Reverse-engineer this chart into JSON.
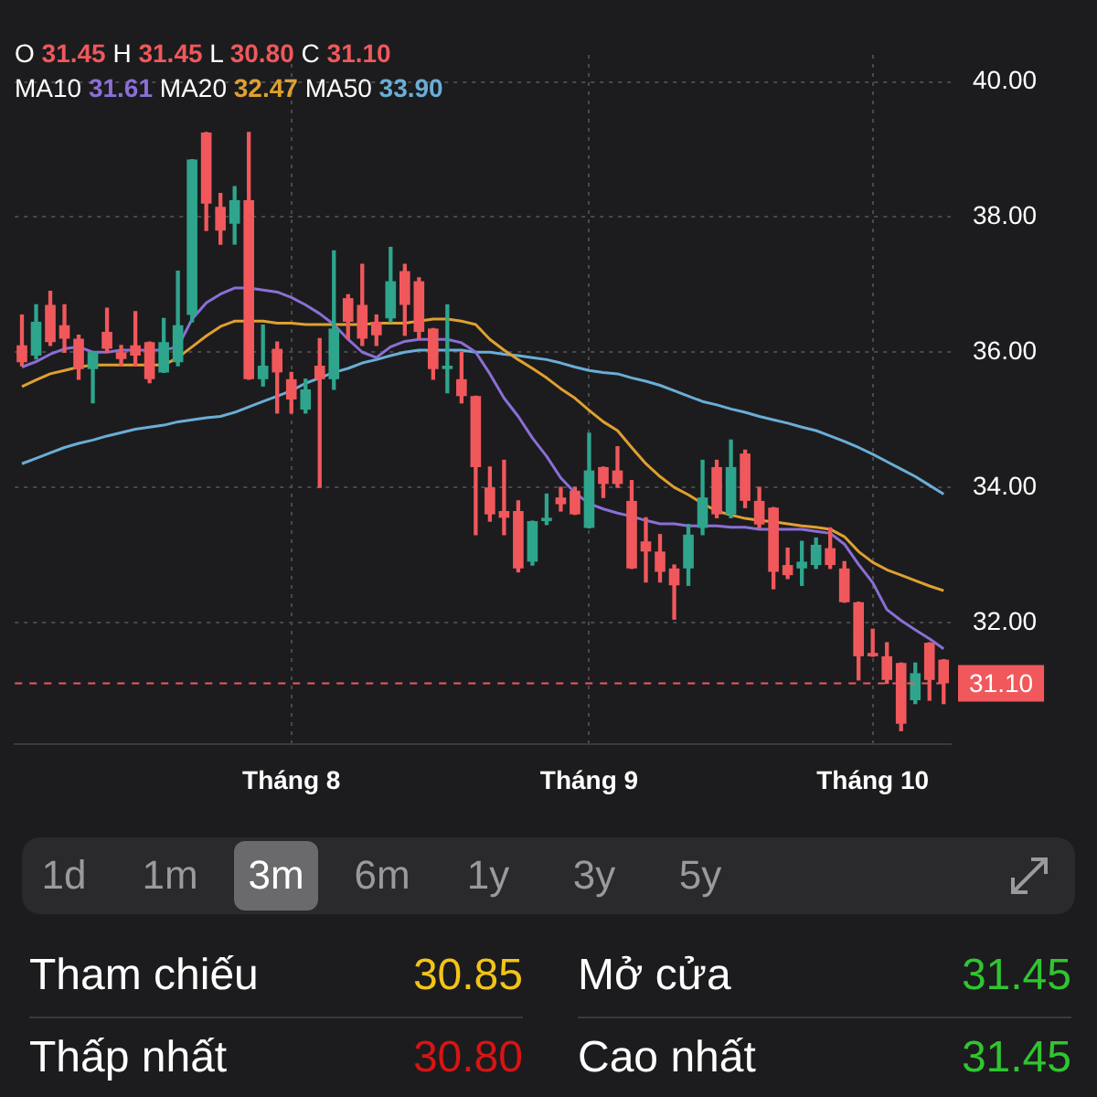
{
  "chart_data": {
    "type": "candlestick",
    "categories": [
      null,
      null,
      null,
      null,
      null,
      null,
      null,
      null,
      null,
      null,
      null,
      null,
      null,
      null,
      null,
      null,
      null,
      null,
      null,
      "Tháng 8",
      null,
      null,
      null,
      null,
      null,
      null,
      null,
      null,
      null,
      null,
      null,
      null,
      null,
      null,
      null,
      null,
      null,
      null,
      null,
      null,
      "Tháng 9",
      null,
      null,
      null,
      null,
      null,
      null,
      null,
      null,
      null,
      null,
      null,
      null,
      null,
      null,
      null,
      null,
      null,
      null,
      null,
      "Tháng 10",
      null,
      null,
      null,
      null,
      null
    ],
    "ohlc": [
      [
        36.1,
        36.55,
        35.8,
        35.85
      ],
      [
        35.95,
        36.7,
        35.9,
        36.45
      ],
      [
        36.7,
        36.9,
        36.1,
        36.15
      ],
      [
        36.4,
        36.7,
        36.0,
        36.2
      ],
      [
        36.2,
        36.25,
        35.6,
        35.75
      ],
      [
        35.75,
        36.0,
        35.25,
        36.0
      ],
      [
        36.3,
        36.65,
        36.0,
        36.05
      ],
      [
        36.0,
        36.1,
        35.8,
        35.9
      ],
      [
        36.1,
        36.6,
        35.8,
        35.95
      ],
      [
        36.15,
        36.15,
        35.55,
        35.6
      ],
      [
        35.7,
        36.5,
        35.7,
        36.15
      ],
      [
        35.85,
        37.2,
        35.8,
        36.4
      ],
      [
        36.55,
        38.85,
        36.45,
        38.85
      ],
      [
        39.25,
        39.25,
        37.8,
        38.2
      ],
      [
        38.15,
        38.35,
        37.6,
        37.8
      ],
      [
        37.9,
        38.45,
        37.6,
        38.25
      ],
      [
        38.25,
        39.25,
        35.6,
        35.6
      ],
      [
        35.6,
        36.4,
        35.5,
        35.8
      ],
      [
        36.05,
        36.15,
        35.1,
        35.7
      ],
      [
        35.6,
        35.7,
        35.1,
        35.3
      ],
      [
        35.15,
        35.6,
        35.1,
        35.45
      ],
      [
        35.8,
        36.2,
        34.0,
        35.6
      ],
      [
        35.6,
        37.5,
        35.45,
        36.35
      ],
      [
        36.8,
        36.85,
        36.2,
        36.45
      ],
      [
        36.7,
        37.3,
        36.1,
        36.2
      ],
      [
        36.45,
        36.55,
        36.1,
        36.25
      ],
      [
        36.5,
        37.55,
        36.45,
        37.05
      ],
      [
        37.2,
        37.3,
        36.25,
        36.7
      ],
      [
        37.05,
        37.1,
        36.2,
        36.3
      ],
      [
        36.35,
        36.35,
        35.6,
        35.75
      ],
      [
        35.75,
        36.7,
        35.4,
        35.8
      ],
      [
        35.6,
        36.0,
        35.25,
        35.35
      ],
      [
        35.35,
        35.35,
        33.3,
        34.3
      ],
      [
        34.0,
        34.3,
        33.5,
        33.6
      ],
      [
        33.65,
        34.4,
        33.3,
        33.55
      ],
      [
        33.65,
        33.8,
        32.75,
        32.8
      ],
      [
        32.9,
        33.5,
        32.85,
        33.5
      ],
      [
        33.5,
        33.9,
        33.45,
        33.55
      ],
      [
        33.85,
        34.0,
        33.65,
        33.75
      ],
      [
        33.95,
        34.0,
        33.6,
        33.6
      ],
      [
        33.4,
        34.8,
        33.4,
        34.25
      ],
      [
        34.3,
        34.3,
        33.85,
        34.05
      ],
      [
        34.25,
        34.6,
        34.0,
        34.05
      ],
      [
        33.8,
        34.1,
        32.8,
        32.8
      ],
      [
        33.2,
        33.55,
        32.6,
        33.05
      ],
      [
        33.05,
        33.3,
        32.6,
        32.75
      ],
      [
        32.8,
        32.85,
        32.05,
        32.55
      ],
      [
        32.8,
        33.45,
        32.55,
        33.3
      ],
      [
        33.4,
        34.4,
        33.3,
        33.85
      ],
      [
        34.3,
        34.4,
        33.55,
        33.6
      ],
      [
        33.6,
        34.7,
        33.55,
        34.3
      ],
      [
        34.5,
        34.55,
        33.7,
        33.8
      ],
      [
        33.8,
        34.0,
        33.4,
        33.45
      ],
      [
        33.7,
        33.7,
        32.5,
        32.75
      ],
      [
        32.85,
        33.1,
        32.65,
        32.7
      ],
      [
        32.8,
        33.2,
        32.55,
        32.9
      ],
      [
        32.85,
        33.25,
        32.8,
        33.15
      ],
      [
        33.1,
        33.4,
        32.8,
        32.85
      ],
      [
        32.8,
        32.9,
        32.3,
        32.3
      ],
      [
        32.3,
        32.3,
        31.15,
        31.5
      ],
      [
        31.55,
        31.9,
        31.5,
        31.5
      ],
      [
        31.5,
        31.7,
        31.1,
        31.15
      ],
      [
        31.4,
        31.4,
        30.4,
        30.5
      ],
      [
        30.85,
        31.4,
        30.8,
        31.25
      ],
      [
        31.7,
        31.7,
        30.85,
        31.15
      ],
      [
        31.45,
        31.45,
        30.8,
        31.1
      ]
    ],
    "series": [
      {
        "type": "line",
        "color": "#8a6fd6",
        "values": [
          35.78,
          35.86,
          35.97,
          36.05,
          36.08,
          36.0,
          36.0,
          36.03,
          36.03,
          36.03,
          36.03,
          36.08,
          36.49,
          36.73,
          36.86,
          36.95,
          36.95,
          36.92,
          36.89,
          36.81,
          36.7,
          36.57,
          36.41,
          36.19,
          36.0,
          35.92,
          36.08,
          36.16,
          36.19,
          36.19,
          36.19,
          36.14,
          36.0,
          35.68,
          35.32,
          35.05,
          34.73,
          34.46,
          34.14,
          33.92,
          33.76,
          33.68,
          33.62,
          33.57,
          33.51,
          33.46,
          33.46,
          33.43,
          33.43,
          33.43,
          33.41,
          33.41,
          33.38,
          33.38,
          33.38,
          33.38,
          33.35,
          33.32,
          33.16,
          32.86,
          32.59,
          32.19,
          32.03,
          31.89,
          31.76,
          31.61
        ]
      },
      {
        "type": "line",
        "color": "#e0a030",
        "values": [
          35.49,
          35.59,
          35.68,
          35.73,
          35.78,
          35.81,
          35.81,
          35.81,
          35.81,
          35.81,
          35.81,
          35.92,
          36.08,
          36.24,
          36.38,
          36.46,
          36.46,
          36.46,
          36.43,
          36.43,
          36.41,
          36.41,
          36.41,
          36.41,
          36.41,
          36.43,
          36.43,
          36.43,
          36.46,
          36.49,
          36.49,
          36.46,
          36.41,
          36.19,
          36.03,
          35.89,
          35.76,
          35.62,
          35.46,
          35.32,
          35.14,
          34.97,
          34.84,
          34.59,
          34.35,
          34.16,
          34.0,
          33.89,
          33.76,
          33.65,
          33.59,
          33.54,
          33.51,
          33.49,
          33.46,
          33.43,
          33.41,
          33.38,
          33.27,
          33.05,
          32.89,
          32.78,
          32.7,
          32.62,
          32.54,
          32.47
        ]
      },
      {
        "type": "line",
        "color": "#6aaed6",
        "values": [
          34.35,
          34.43,
          34.51,
          34.59,
          34.65,
          34.7,
          34.76,
          34.81,
          34.86,
          34.89,
          34.92,
          34.97,
          35.0,
          35.03,
          35.05,
          35.11,
          35.19,
          35.27,
          35.35,
          35.43,
          35.54,
          35.62,
          35.7,
          35.76,
          35.84,
          35.89,
          35.95,
          36.0,
          36.03,
          36.03,
          36.03,
          36.03,
          36.0,
          36.0,
          35.97,
          35.95,
          35.92,
          35.89,
          35.84,
          35.78,
          35.73,
          35.7,
          35.68,
          35.62,
          35.57,
          35.51,
          35.43,
          35.35,
          35.27,
          35.22,
          35.16,
          35.11,
          35.05,
          35.0,
          34.95,
          34.89,
          34.84,
          34.76,
          34.68,
          34.59,
          34.49,
          34.38,
          34.27,
          34.16,
          34.03,
          33.9
        ]
      }
    ],
    "ylim": [
      30.2,
      40.4
    ],
    "yticks": [
      {
        "value": 32,
        "label": "32.00"
      },
      {
        "value": 34,
        "label": "34.00"
      },
      {
        "value": 36,
        "label": "36.00"
      },
      {
        "value": 38,
        "label": "38.00"
      },
      {
        "value": 40,
        "label": "40.00"
      }
    ],
    "ref_lines": [
      {
        "axis": "y",
        "value": 31.1,
        "label": "31.10",
        "color": "#f0585c",
        "line_style": "dashed"
      }
    ],
    "grid": true,
    "annotations": [
      "O 31.45 H 31.45 L 30.80 C 31.10",
      "MA10 31.61 MA20 32.47 MA50 33.90",
      "1d",
      "1m",
      "3m",
      "6m",
      "1y",
      "3y",
      "5y",
      "Tham chiếu 30.85",
      "Mở cửa 31.45",
      "Thấp nhất 30.80",
      "Cao nhất 31.45"
    ]
  }
}
